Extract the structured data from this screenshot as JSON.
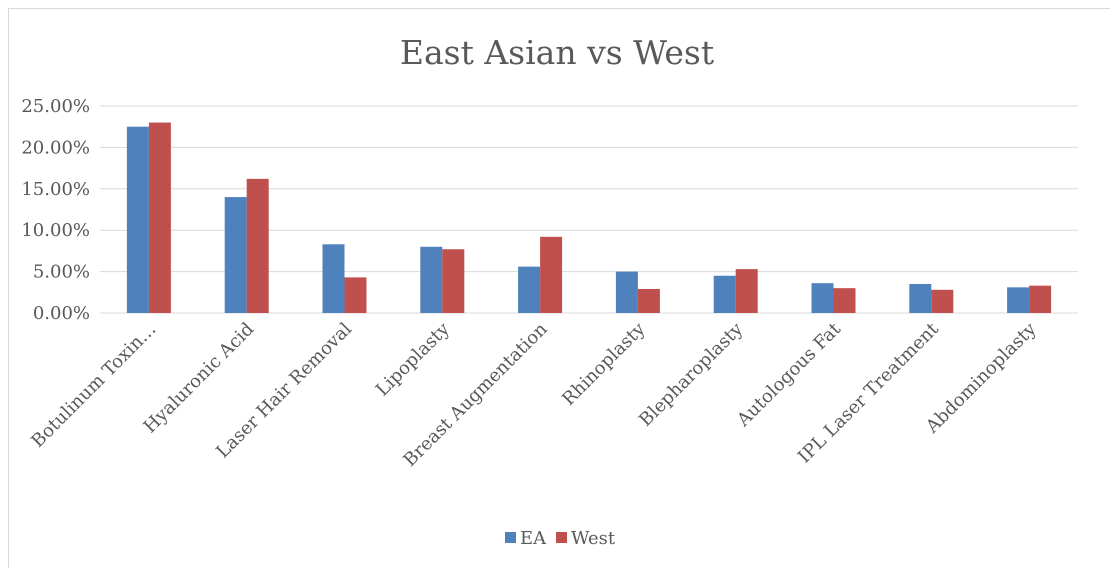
{
  "chart_data": {
    "type": "bar",
    "title": "East Asian vs West",
    "categories": [
      "Botulinum Toxin…",
      "Hyaluronic Acid",
      "Laser Hair Removal",
      "Lipoplasty",
      "Breast Augmentation",
      "Rhinoplasty",
      "Blepharoplasty",
      "Autologous Fat",
      "IPL Laser Treatment",
      "Abdominoplasty"
    ],
    "series": [
      {
        "name": "EA",
        "color": "#4f81bd",
        "values": [
          22.5,
          14.0,
          8.3,
          8.0,
          5.6,
          5.0,
          4.5,
          3.6,
          3.5,
          3.1
        ]
      },
      {
        "name": "West",
        "color": "#c0504d",
        "values": [
          23.0,
          16.2,
          4.3,
          7.7,
          9.2,
          2.9,
          5.3,
          3.0,
          2.8,
          3.3
        ]
      }
    ],
    "y_ticks": [
      "0.00%",
      "5.00%",
      "10.00%",
      "15.00%",
      "20.00%",
      "25.00%"
    ],
    "ylim": [
      0,
      25
    ],
    "ylabel": "",
    "xlabel": "",
    "grid": true,
    "legend_position": "bottom"
  }
}
